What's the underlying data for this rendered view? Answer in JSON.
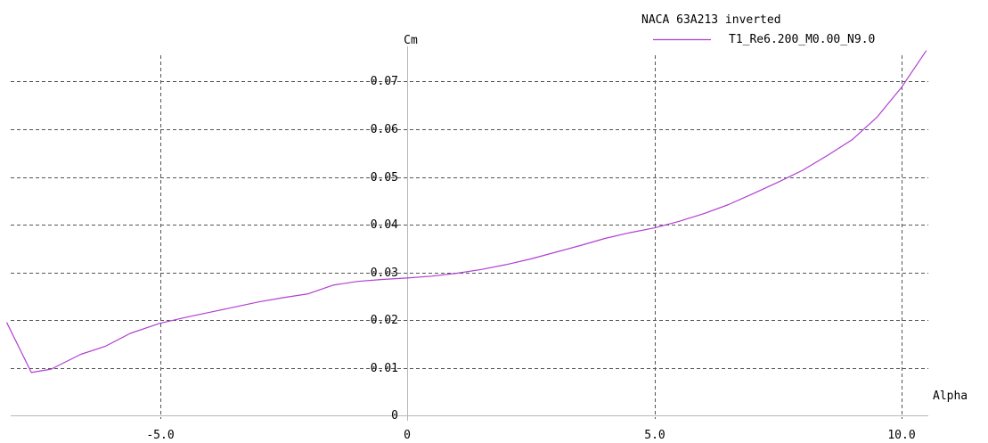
{
  "chart_data": {
    "type": "line",
    "title": "NACA 63A213 inverted",
    "xlabel": "Alpha",
    "ylabel": "Cm",
    "xlim": [
      -8.1,
      10.5
    ],
    "ylim": [
      0,
      0.08
    ],
    "x_ticks": [
      -5,
      0,
      5,
      10
    ],
    "x_tick_labels": [
      "-5.0",
      "0",
      "5.0",
      "10.0"
    ],
    "y_ticks": [
      0,
      0.01,
      0.02,
      0.03,
      0.04,
      0.05,
      0.06,
      0.07
    ],
    "y_tick_labels": [
      "0",
      "0.01",
      "0.02",
      "0.03",
      "0.04",
      "0.05",
      "0.06",
      "0.07"
    ],
    "grid": true,
    "grid_style": "dashed",
    "legend_position": "top-right",
    "series": [
      {
        "name": "T1_Re6.200_M0.00_N9.0",
        "color": "#b040d0",
        "x": [
          -8.1,
          -7.6,
          -7.2,
          -6.6,
          -6.1,
          -5.6,
          -5.0,
          -4.5,
          -4.0,
          -3.5,
          -3.0,
          -2.5,
          -2.0,
          -1.5,
          -1.0,
          -0.5,
          0.0,
          0.5,
          1.0,
          1.5,
          2.0,
          2.5,
          3.0,
          3.5,
          4.0,
          4.5,
          5.0,
          5.5,
          6.0,
          6.5,
          7.0,
          7.5,
          8.0,
          8.5,
          9.0,
          9.5,
          10.0,
          10.5
        ],
        "y": [
          0.0195,
          0.009,
          0.0097,
          0.0128,
          0.0145,
          0.0172,
          0.0193,
          0.0205,
          0.0216,
          0.0227,
          0.0238,
          0.0247,
          0.0255,
          0.0273,
          0.0281,
          0.0285,
          0.0288,
          0.0292,
          0.0298,
          0.0306,
          0.0316,
          0.0328,
          0.0342,
          0.0356,
          0.0371,
          0.0383,
          0.0393,
          0.0407,
          0.0423,
          0.0442,
          0.0465,
          0.0489,
          0.0514,
          0.0545,
          0.0578,
          0.0625,
          0.0688,
          0.0765
        ]
      }
    ]
  }
}
